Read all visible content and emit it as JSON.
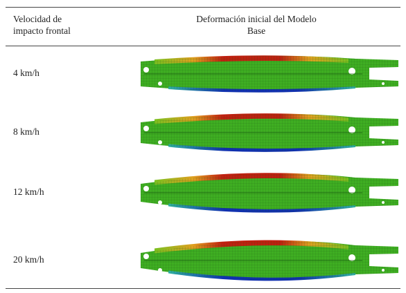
{
  "header": {
    "columns": [
      {
        "lines": [
          "Velocidad de",
          "impacto frontal"
        ]
      },
      {
        "lines": [
          "Deformación inicial del Modelo",
          "Base"
        ]
      }
    ]
  },
  "rows": [
    {
      "label": "4 km/h"
    },
    {
      "label": "8 km/h"
    },
    {
      "label": "12 km/h"
    },
    {
      "label": "20 km/h"
    }
  ]
}
